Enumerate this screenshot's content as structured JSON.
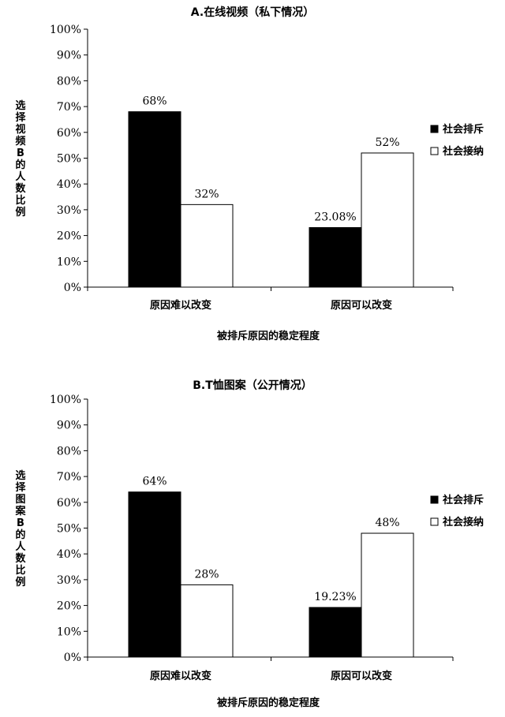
{
  "chart_data": [
    {
      "type": "bar",
      "title": "A.在线视频（私下情况）",
      "ylabel": "选择视频B的人数比例",
      "xlabel": "被排斥原因的稳定程度",
      "categories": [
        "原因难以改变",
        "原因可以改变"
      ],
      "ylim": [
        0,
        100
      ],
      "yticks": [
        "0%",
        "10%",
        "20%",
        "30%",
        "40%",
        "50%",
        "60%",
        "70%",
        "80%",
        "90%",
        "100%"
      ],
      "legend_position": "right",
      "series": [
        {
          "name": "社会排斥",
          "color": "#000000",
          "values": [
            68,
            23.08
          ],
          "labels": [
            "68%",
            "23.08%"
          ]
        },
        {
          "name": "社会接纳",
          "color": "#ffffff",
          "values": [
            32,
            52
          ],
          "labels": [
            "32%",
            "52%"
          ]
        }
      ]
    },
    {
      "type": "bar",
      "title": "B.T恤图案（公开情况）",
      "ylabel": "选择图案B的人数比例",
      "xlabel": "被排斥原因的稳定程度",
      "categories": [
        "原因难以改变",
        "原因可以改变"
      ],
      "ylim": [
        0,
        100
      ],
      "yticks": [
        "0%",
        "10%",
        "20%",
        "30%",
        "40%",
        "50%",
        "60%",
        "70%",
        "80%",
        "90%",
        "100%"
      ],
      "legend_position": "right",
      "series": [
        {
          "name": "社会排斥",
          "color": "#000000",
          "values": [
            64,
            19.23
          ],
          "labels": [
            "64%",
            "19.23%"
          ]
        },
        {
          "name": "社会接纳",
          "color": "#ffffff",
          "values": [
            28,
            48
          ],
          "labels": [
            "28%",
            "48%"
          ]
        }
      ]
    }
  ]
}
